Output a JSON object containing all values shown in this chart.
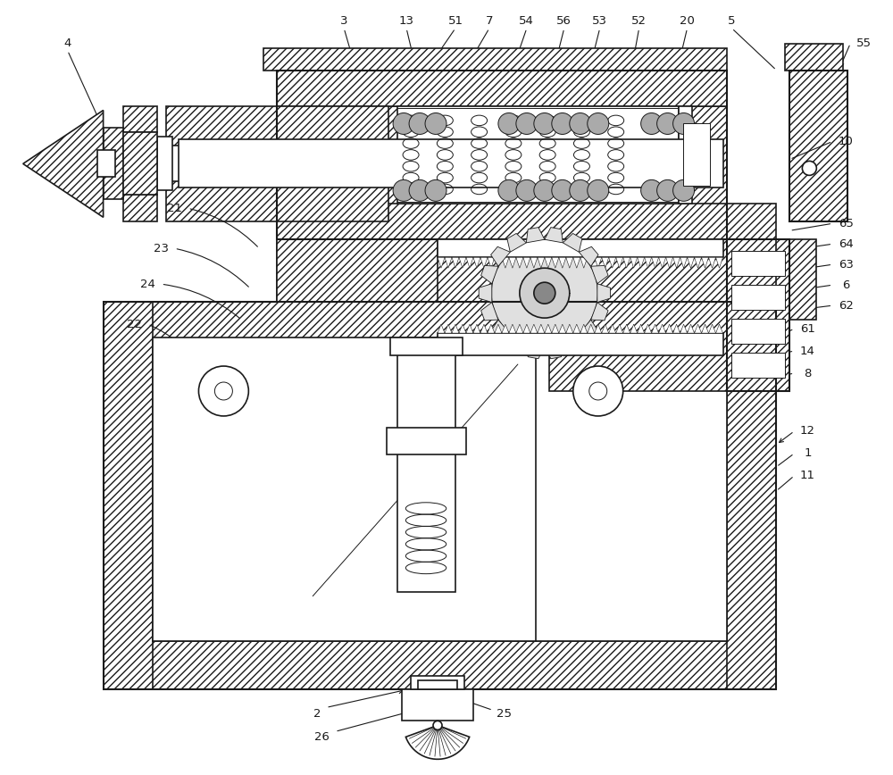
{
  "background_color": "#ffffff",
  "line_color": "#1a1a1a",
  "fig_width": 10.0,
  "fig_height": 8.68,
  "hatch_pattern": "////",
  "lw_main": 1.2,
  "lw_thin": 0.7,
  "fs_label": 9
}
